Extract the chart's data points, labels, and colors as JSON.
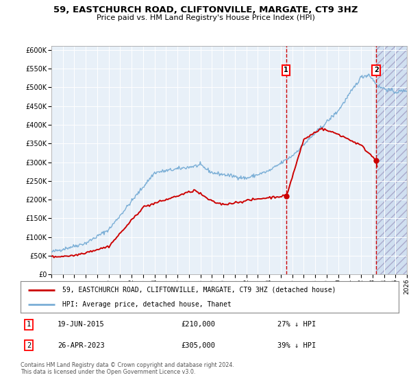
{
  "title": "59, EASTCHURCH ROAD, CLIFTONVILLE, MARGATE, CT9 3HZ",
  "subtitle": "Price paid vs. HM Land Registry's House Price Index (HPI)",
  "ylabel_ticks": [
    "£0",
    "£50K",
    "£100K",
    "£150K",
    "£200K",
    "£250K",
    "£300K",
    "£350K",
    "£400K",
    "£450K",
    "£500K",
    "£550K",
    "£600K"
  ],
  "ytick_vals": [
    0,
    50000,
    100000,
    150000,
    200000,
    250000,
    300000,
    350000,
    400000,
    450000,
    500000,
    550000,
    600000
  ],
  "ylim": [
    0,
    610000
  ],
  "xmin_year": 1995,
  "xmax_year": 2026,
  "xtick_years": [
    1995,
    1996,
    1997,
    1998,
    1999,
    2000,
    2001,
    2002,
    2003,
    2004,
    2005,
    2006,
    2007,
    2008,
    2009,
    2010,
    2011,
    2012,
    2013,
    2014,
    2015,
    2016,
    2017,
    2018,
    2019,
    2020,
    2021,
    2022,
    2023,
    2024,
    2025,
    2026
  ],
  "hpi_color": "#7aaed6",
  "price_color": "#cc0000",
  "marker1_date": 2015.46,
  "marker1_price": 210000,
  "marker1_label": "19-JUN-2015",
  "marker1_amount": "£210,000",
  "marker1_pct": "27% ↓ HPI",
  "marker2_date": 2023.32,
  "marker2_price": 305000,
  "marker2_label": "26-APR-2023",
  "marker2_amount": "£305,000",
  "marker2_pct": "39% ↓ HPI",
  "legend_line1": "59, EASTCHURCH ROAD, CLIFTONVILLE, MARGATE, CT9 3HZ (detached house)",
  "legend_line2": "HPI: Average price, detached house, Thanet",
  "footnote": "Contains HM Land Registry data © Crown copyright and database right 2024.\nThis data is licensed under the Open Government Licence v3.0.",
  "hatch_color": "#aaaaaa",
  "bg_color": "#e8f0f8",
  "hatch_bg": "#d0dff0"
}
